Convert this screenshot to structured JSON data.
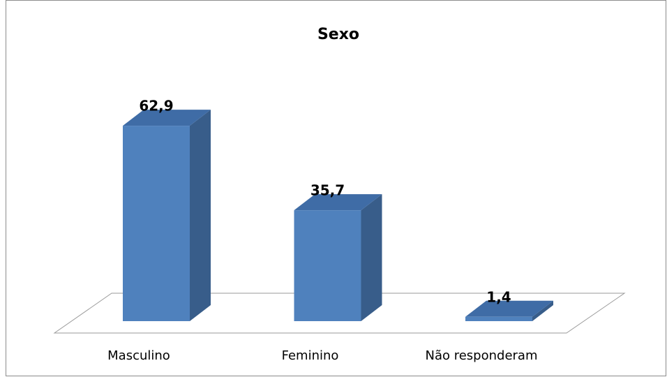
{
  "chart_data": {
    "type": "bar",
    "title": "Sexo",
    "categories": [
      "Masculino",
      "Feminino",
      "Não responderam"
    ],
    "values": [
      62.9,
      35.7,
      1.4
    ],
    "value_labels": [
      "62,9",
      "35,7",
      "1,4"
    ],
    "color": "#4f81bd"
  }
}
